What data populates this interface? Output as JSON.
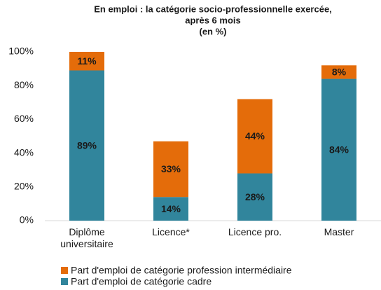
{
  "chart_data": {
    "type": "stacked_bar",
    "title": [
      "En emploi  : la catégorie socio-professionnelle  exercée,",
      "après 6 mois",
      "(en %)"
    ],
    "categories": [
      "Diplôme universitaire",
      "Licence*",
      "Licence pro.",
      "Master"
    ],
    "series": [
      {
        "name": "Part d'emploi de catégorie cadre",
        "color": "#31859c",
        "label_color": "#ffffff",
        "values": [
          89,
          14,
          28,
          84
        ],
        "value_labels": [
          "89%",
          "14%",
          "28%",
          "84%"
        ]
      },
      {
        "name": "Part d'emploi de catégorie profession intermédiaire",
        "color": "#e46c0a",
        "label_color": "#1a1a1a",
        "values": [
          11,
          33,
          44,
          8
        ],
        "value_labels": [
          "11%",
          "33%",
          "44%",
          "8%"
        ]
      }
    ],
    "ylim": [
      0,
      100
    ],
    "yticks": [
      {
        "value": 0,
        "label": "0%"
      },
      {
        "value": 20,
        "label": "20%"
      },
      {
        "value": 40,
        "label": "40%"
      },
      {
        "value": 60,
        "label": "60%"
      },
      {
        "value": 80,
        "label": "80%"
      },
      {
        "value": 100,
        "label": "100%"
      }
    ],
    "grid": false,
    "legend": "bottom",
    "legend_order": [
      1,
      0
    ]
  }
}
